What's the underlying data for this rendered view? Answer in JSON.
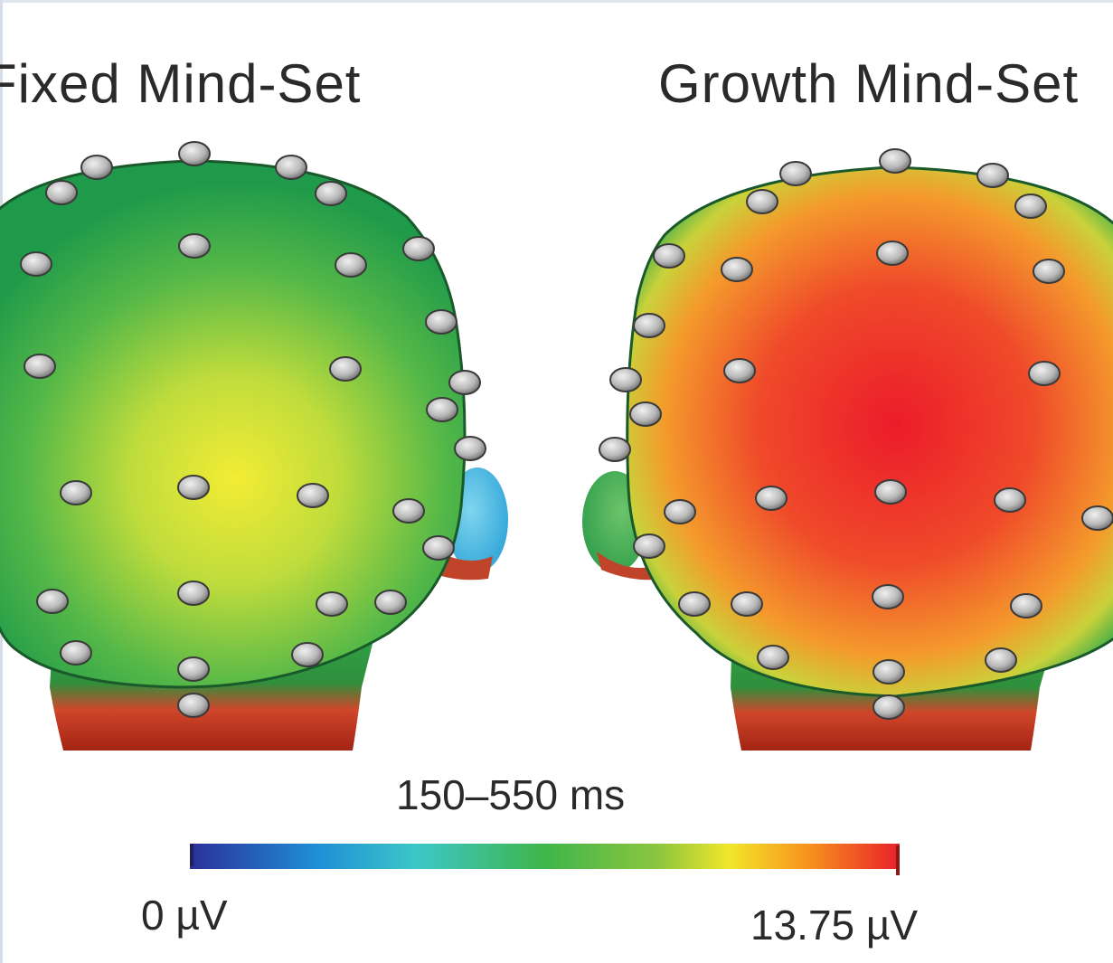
{
  "panels": [
    {
      "title": "Fixed Mind-Set",
      "level": 0.55
    },
    {
      "title": "Growth Mind-Set",
      "level": 0.92
    }
  ],
  "time_window": "150–550 ms",
  "colorbar": {
    "min_label": "0 µV",
    "max_label": "13.75 µV",
    "colors": [
      "#2b2f9a",
      "#1f8fd6",
      "#3cc7c8",
      "#3fb54a",
      "#8cc63f",
      "#f2e62a",
      "#f7941d",
      "#e8202a"
    ]
  }
}
